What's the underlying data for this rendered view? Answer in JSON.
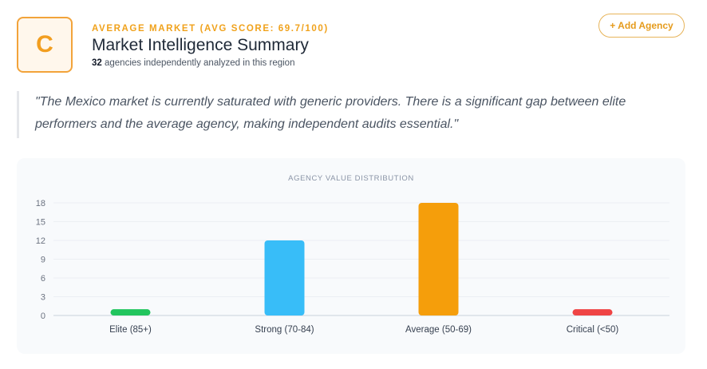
{
  "header": {
    "grade_letter": "C",
    "eyebrow": "AVERAGE MARKET (AVG SCORE: 69.7/100)",
    "title": "Market Intelligence Summary",
    "agency_count": "32",
    "subtitle_rest": " agencies independently analyzed in this region",
    "add_button_label": "+ Add Agency"
  },
  "quote": "\"The Mexico market is currently saturated with generic providers. There is a significant gap between elite performers and the average agency, making independent audits essential.\"",
  "colors": {
    "accent": "#f0a21c",
    "elite": "#22c55e",
    "strong": "#38bdf8",
    "average": "#f59e0b",
    "critical": "#ef4444"
  },
  "chart_data": {
    "type": "bar",
    "title": "AGENCY VALUE DISTRIBUTION",
    "categories": [
      "Elite (85+)",
      "Strong (70-84)",
      "Average (50-69)",
      "Critical (<50)"
    ],
    "values": [
      1,
      12,
      18,
      1
    ],
    "bar_colors": [
      "#22c55e",
      "#38bdf8",
      "#f59e0b",
      "#ef4444"
    ],
    "yticks": [
      0,
      3,
      6,
      9,
      12,
      15,
      18
    ],
    "ylim": [
      0,
      18
    ],
    "xlabel": "",
    "ylabel": "",
    "grid": true
  }
}
